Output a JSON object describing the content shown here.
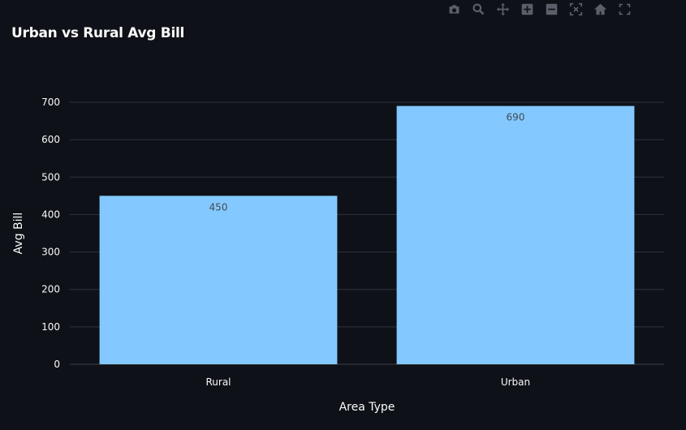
{
  "toolbar": {
    "icons": [
      "camera-icon",
      "zoom-icon",
      "pan-icon",
      "zoom-in-icon",
      "zoom-out-icon",
      "autoscale-icon",
      "reset-axes-icon",
      "fullscreen-icon"
    ]
  },
  "colors": {
    "background": "#0e1117",
    "bar": "#83c9ff",
    "grid": "#31333f",
    "text": "#fafafa"
  },
  "chart_data": {
    "type": "bar",
    "title": "Urban vs Rural Avg Bill",
    "xlabel": "Area Type",
    "ylabel": "Avg Bill",
    "categories": [
      "Rural",
      "Urban"
    ],
    "values": [
      450,
      690
    ],
    "ylim": [
      0,
      700
    ],
    "yticks": [
      0,
      100,
      200,
      300,
      400,
      500,
      600,
      700
    ],
    "grid": true,
    "data_labels": true
  }
}
